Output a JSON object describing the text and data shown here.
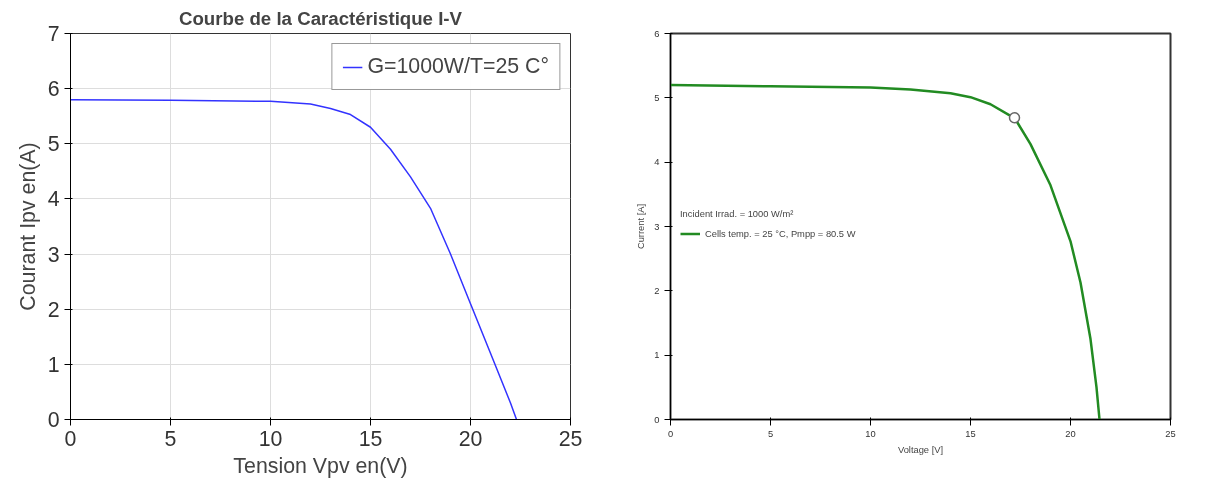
{
  "chart_data": [
    {
      "type": "line",
      "title": "Courbe de la Caractéristique I-V",
      "xlabel": "Tension Vpv en(V)",
      "ylabel": "Courant Ipv en(A)",
      "xlim": [
        0,
        25
      ],
      "ylim": [
        0,
        7
      ],
      "xticks": [
        0,
        5,
        10,
        15,
        20,
        25
      ],
      "yticks": [
        0,
        1,
        2,
        3,
        4,
        5,
        6,
        7
      ],
      "grid": true,
      "legend": "top right",
      "series": [
        {
          "name": "G=1000W/T=25 C°",
          "color": "#3333ff",
          "x": [
            0,
            5,
            10,
            12,
            13,
            14,
            15,
            16,
            17,
            18,
            19,
            20,
            21,
            22,
            22.3
          ],
          "values": [
            5.8,
            5.79,
            5.77,
            5.72,
            5.64,
            5.53,
            5.3,
            4.9,
            4.4,
            3.83,
            3.0,
            2.1,
            1.2,
            0.3,
            0
          ]
        }
      ]
    },
    {
      "type": "line",
      "xlabel": "Voltage [V]",
      "ylabel": "Current [A]",
      "xlim": [
        0,
        25
      ],
      "ylim": [
        0,
        6
      ],
      "xticks": [
        0,
        5,
        10,
        15,
        20,
        25
      ],
      "yticks": [
        0,
        1,
        2,
        3,
        4,
        5,
        6
      ],
      "grid": false,
      "legend": "left",
      "legend_title": "Incident Irrad. = 1000 W/m²",
      "series": [
        {
          "name": "Cells temp. = 25 °C, Pmpp = 80.5 W",
          "color": "#228b22",
          "x": [
            0,
            5,
            10,
            12,
            14,
            15,
            16,
            17,
            17.2,
            18,
            19,
            20,
            20.5,
            21,
            21.3,
            21.45
          ],
          "values": [
            5.2,
            5.18,
            5.16,
            5.13,
            5.07,
            5.01,
            4.9,
            4.72,
            4.69,
            4.28,
            3.64,
            2.77,
            2.13,
            1.25,
            0.5,
            0
          ]
        },
        {
          "type": "scatter",
          "marker": "circle",
          "color": "#ffffff",
          "x": [
            17.2
          ],
          "values": [
            4.69
          ]
        }
      ]
    }
  ]
}
